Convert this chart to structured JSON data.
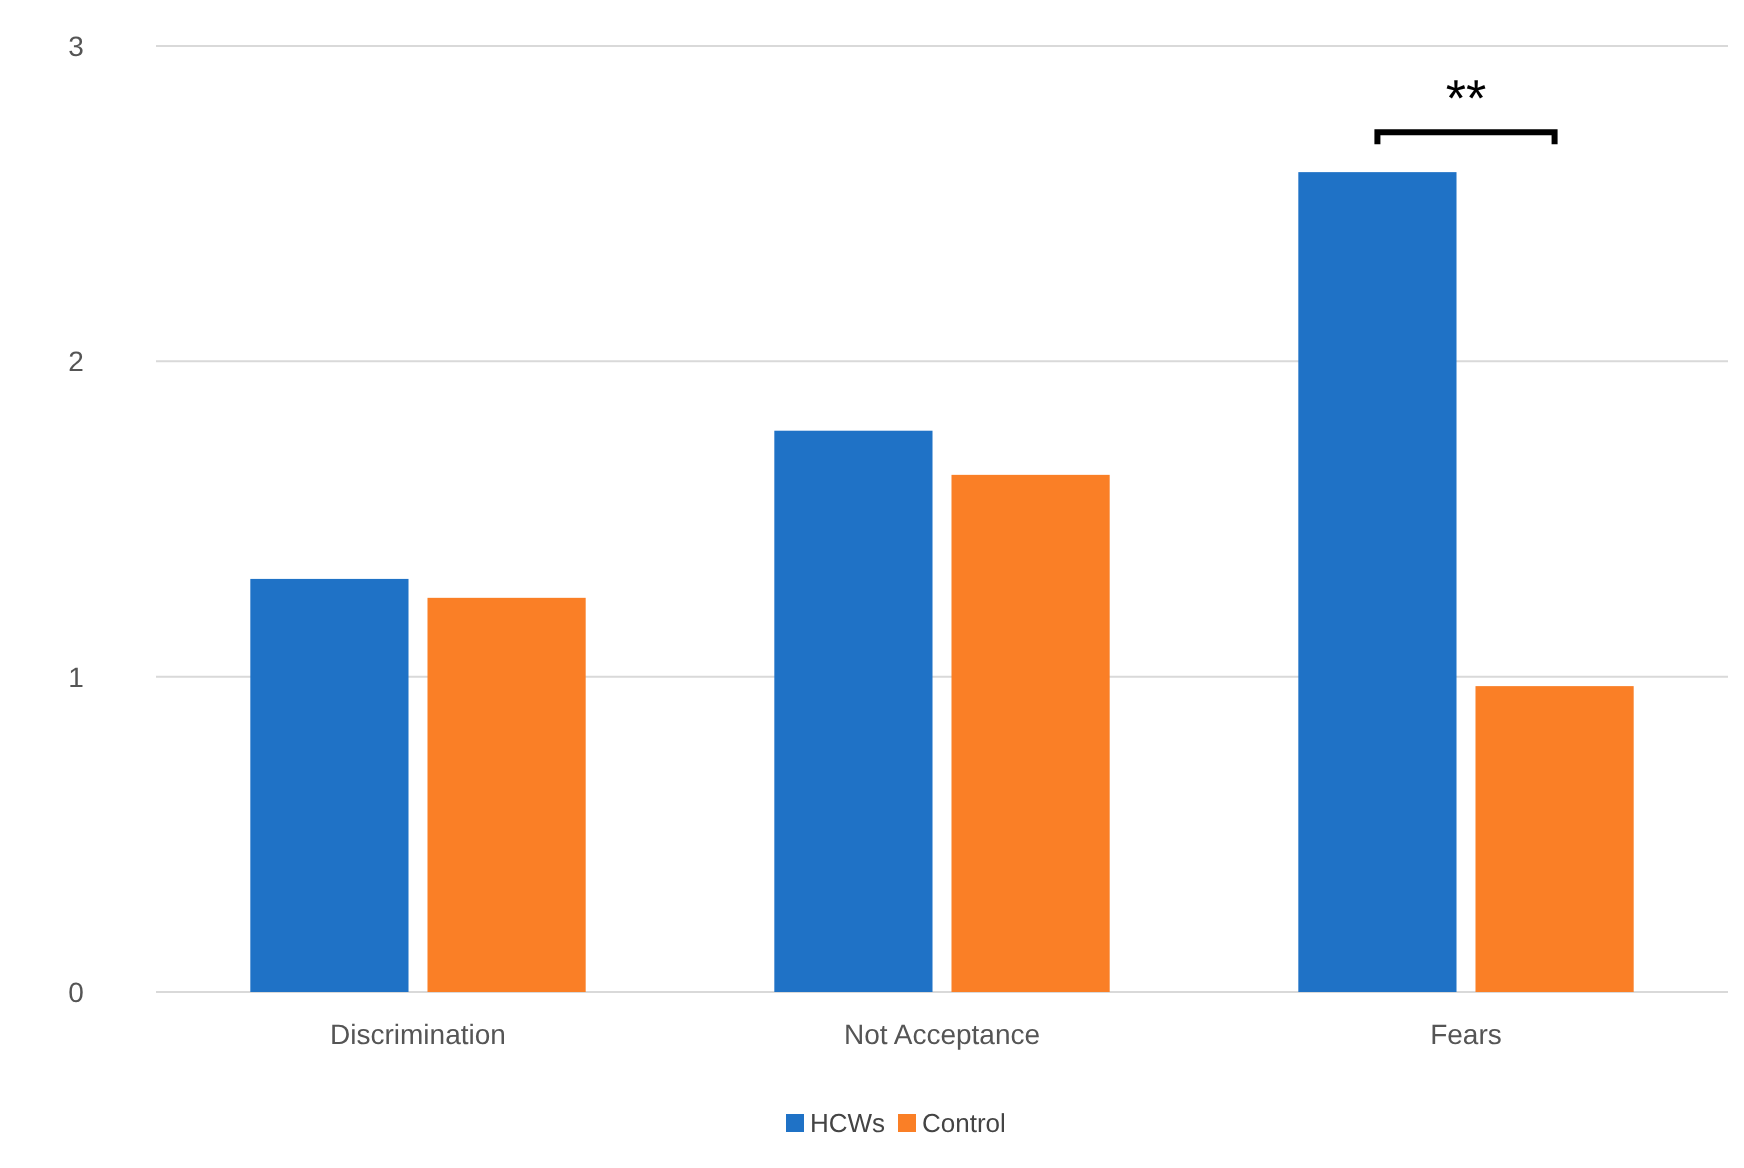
{
  "chart_data": {
    "type": "bar",
    "categories": [
      "Discrimination",
      "Not Acceptance",
      "Fears"
    ],
    "series": [
      {
        "name": "HCWs",
        "color": "#1f72c6",
        "values": [
          1.31,
          1.78,
          2.6
        ]
      },
      {
        "name": "Control",
        "color": "#fa7f26",
        "values": [
          1.25,
          1.64,
          0.97
        ]
      }
    ],
    "ylim": [
      0,
      3
    ],
    "yticks": [
      0,
      1,
      2,
      3
    ],
    "grid": "y",
    "legend": "bottom",
    "annotations": [
      "**"
    ]
  }
}
